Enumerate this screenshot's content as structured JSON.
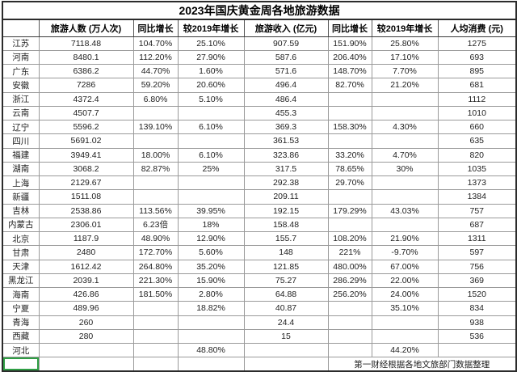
{
  "title": "2023年国庆黄金周各地旅游数据",
  "chart_data": {
    "type": "table",
    "title": "2023年国庆黄金周各地旅游数据",
    "columns": [
      "",
      "旅游人数 (万人次)",
      "同比增长",
      "较2019年增长",
      "旅游收入 (亿元)",
      "同比增长",
      "较2019年增长",
      "人均消费 (元)"
    ],
    "rows": [
      [
        "江苏",
        "7118.48",
        "104.70%",
        "25.10%",
        "907.59",
        "151.90%",
        "25.80%",
        "1275"
      ],
      [
        "河南",
        "8480.1",
        "112.20%",
        "27.90%",
        "587.6",
        "206.40%",
        "17.10%",
        "693"
      ],
      [
        "广东",
        "6386.2",
        "44.70%",
        "1.60%",
        "571.6",
        "148.70%",
        "7.70%",
        "895"
      ],
      [
        "安徽",
        "7286",
        "59.20%",
        "20.60%",
        "496.4",
        "82.70%",
        "21.20%",
        "681"
      ],
      [
        "浙江",
        "4372.4",
        "6.80%",
        "5.10%",
        "486.4",
        "",
        "",
        "1112"
      ],
      [
        "云南",
        "4507.7",
        "",
        "",
        "455.3",
        "",
        "",
        "1010"
      ],
      [
        "辽宁",
        "5596.2",
        "139.10%",
        "6.10%",
        "369.3",
        "158.30%",
        "4.30%",
        "660"
      ],
      [
        "四川",
        "5691.02",
        "",
        "",
        "361.53",
        "",
        "",
        "635"
      ],
      [
        "福建",
        "3949.41",
        "18.00%",
        "6.10%",
        "323.86",
        "33.20%",
        "4.70%",
        "820"
      ],
      [
        "湖南",
        "3068.2",
        "82.87%",
        "25%",
        "317.5",
        "78.65%",
        "30%",
        "1035"
      ],
      [
        "上海",
        "2129.67",
        "",
        "",
        "292.38",
        "29.70%",
        "",
        "1373"
      ],
      [
        "新疆",
        "1511.08",
        "",
        "",
        "209.11",
        "",
        "",
        "1384"
      ],
      [
        "吉林",
        "2538.86",
        "113.56%",
        "39.95%",
        "192.15",
        "179.29%",
        "43.03%",
        "757"
      ],
      [
        "内蒙古",
        "2306.01",
        "6.23倍",
        "18%",
        "158.48",
        "",
        "",
        "687"
      ],
      [
        "北京",
        "1187.9",
        "48.90%",
        "12.90%",
        "155.7",
        "108.20%",
        "21.90%",
        "1311"
      ],
      [
        "甘肃",
        "2480",
        "172.70%",
        "5.60%",
        "148",
        "221%",
        "-9.70%",
        "597"
      ],
      [
        "天津",
        "1612.42",
        "264.80%",
        "35.20%",
        "121.85",
        "480.00%",
        "67.00%",
        "756"
      ],
      [
        "黑龙江",
        "2039.1",
        "221.30%",
        "15.90%",
        "75.27",
        "286.29%",
        "22.00%",
        "369"
      ],
      [
        "海南",
        "426.86",
        "181.50%",
        "2.80%",
        "64.88",
        "256.20%",
        "24.00%",
        "1520"
      ],
      [
        "宁夏",
        "489.96",
        "",
        "18.82%",
        "40.87",
        "",
        "35.10%",
        "834"
      ],
      [
        "青海",
        "260",
        "",
        "",
        "24.4",
        "",
        "",
        "938"
      ],
      [
        "西藏",
        "280",
        "",
        "",
        "15",
        "",
        "",
        "536"
      ],
      [
        "河北",
        "",
        "",
        "48.80%",
        "",
        "",
        "44.20%",
        ""
      ]
    ],
    "source_note": "第一财经根据各地文旅部门数据整理"
  },
  "colors": {
    "selection_green": "#2f9e44",
    "grid_border": "#9a9a9a",
    "outer_border": "#2b2b2b"
  }
}
